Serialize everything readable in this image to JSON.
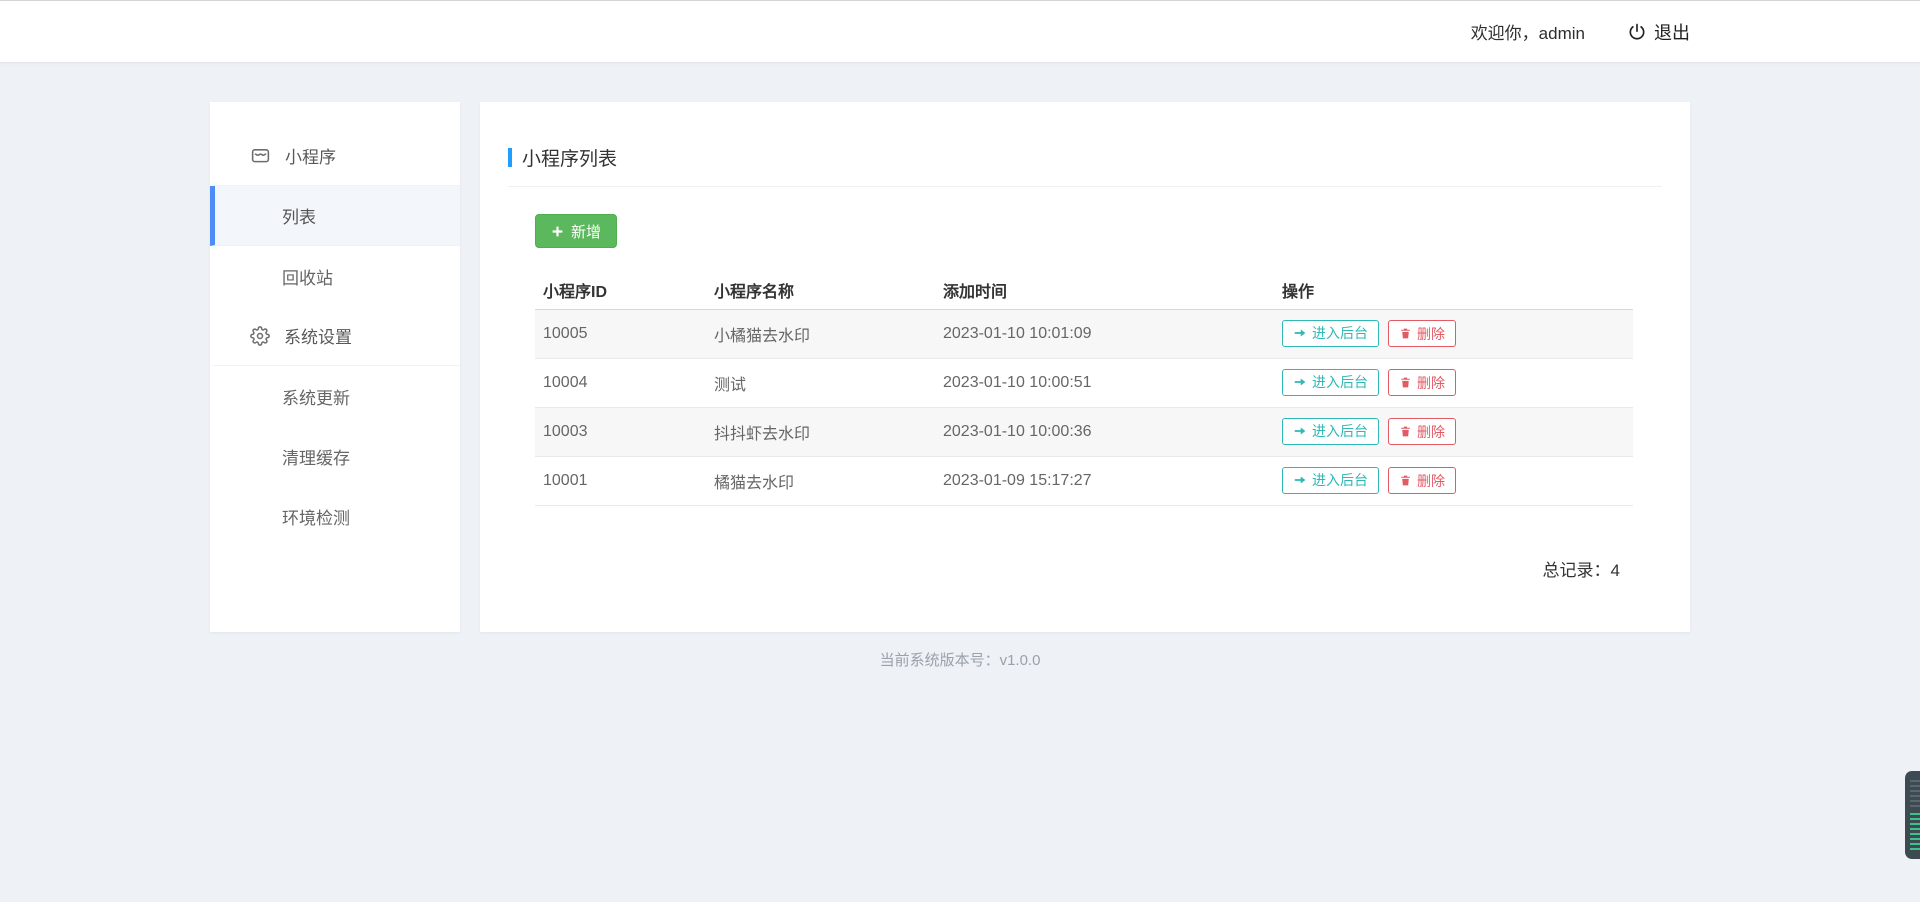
{
  "header": {
    "welcome_text": "欢迎你，admin",
    "logout_label": "退出"
  },
  "sidebar": {
    "items": [
      {
        "key": "miniprogram",
        "label": "小程序",
        "icon": "miniprogram-icon",
        "level": "parent",
        "selected": false
      },
      {
        "key": "list",
        "label": "列表",
        "icon": null,
        "level": "child",
        "selected": true
      },
      {
        "key": "recycle-bin",
        "label": "回收站",
        "icon": null,
        "level": "child",
        "selected": false
      },
      {
        "key": "system-settings",
        "label": "系统设置",
        "icon": "gear-icon",
        "level": "parent",
        "selected": false
      },
      {
        "key": "system-update",
        "label": "系统更新",
        "icon": null,
        "level": "child",
        "selected": false
      },
      {
        "key": "clear-cache",
        "label": "清理缓存",
        "icon": null,
        "level": "child",
        "selected": false
      },
      {
        "key": "env-check",
        "label": "环境检测",
        "icon": null,
        "level": "child",
        "selected": false
      }
    ]
  },
  "main": {
    "panel_title": "小程序列表",
    "add_button_label": "新增",
    "table": {
      "headers": [
        "小程序ID",
        "小程序名称",
        "添加时间",
        "操作"
      ],
      "rows": [
        {
          "id": "10005",
          "name": "小橘猫去水印",
          "added_time": "2023-01-10 10:01:09"
        },
        {
          "id": "10004",
          "name": "测试",
          "added_time": "2023-01-10 10:00:51"
        },
        {
          "id": "10003",
          "name": "抖抖虾去水印",
          "added_time": "2023-01-10 10:00:36"
        },
        {
          "id": "10001",
          "name": "橘猫去水印",
          "added_time": "2023-01-09 15:17:27"
        }
      ],
      "row_actions": {
        "enter_admin_label": "进入后台",
        "delete_label": "删除"
      }
    },
    "total_label": "总记录：",
    "total_value": "4"
  },
  "footer": {
    "version_text": "当前系统版本号：v1.0.0"
  },
  "colors": {
    "page_background": "#eef1f6",
    "accent_blue": "#1e9fff",
    "sidebar_active_blue": "#4d8ef5",
    "add_button_green": "#5cb85c",
    "enter_button_teal": "#2fb8b5",
    "delete_button_red": "#e25a64"
  }
}
